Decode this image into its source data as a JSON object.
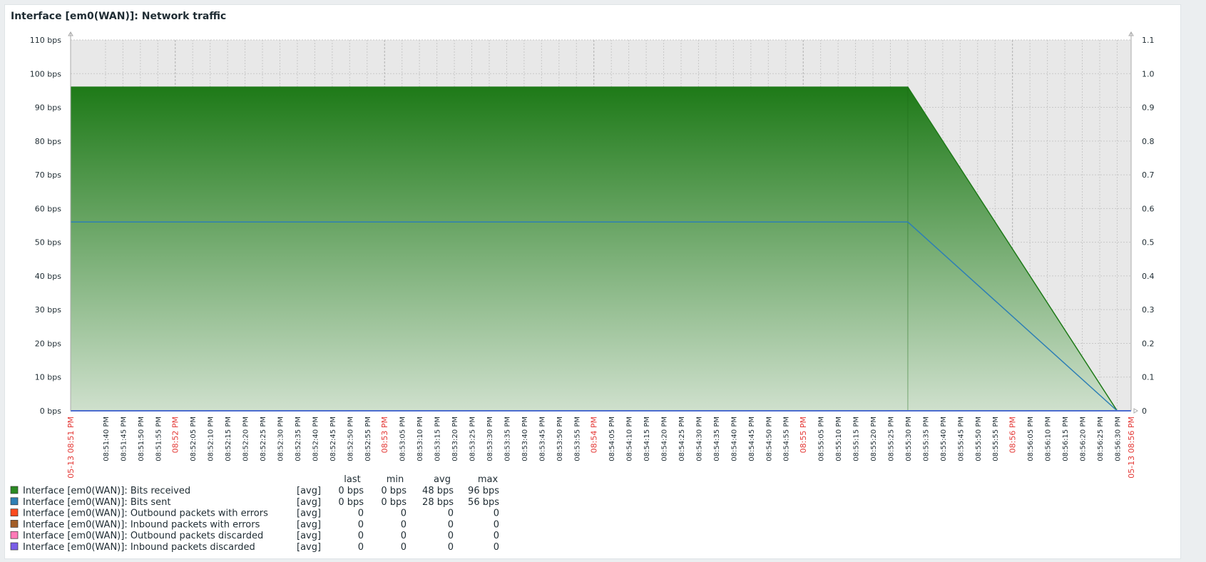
{
  "title": "Interface [em0(WAN)]: Network traffic",
  "colors": {
    "plot_bg": "#e8e8e8",
    "grid": "#c8c8c8",
    "axis": "#aaaaaa",
    "tick_text": "#1f2c33",
    "time_major": "#e33734",
    "received_top": "#1e7a18",
    "received_bottom": "#cfe0cd",
    "sent_line": "#2e7fb5",
    "zero_line": "#4b6cd0"
  },
  "chart_data": {
    "type": "area",
    "title": "Interface [em0(WAN)]: Network traffic",
    "y_left": {
      "min": 0,
      "max": 110,
      "unit": "bps",
      "ticks": [
        "0 bps",
        "10 bps",
        "20 bps",
        "30 bps",
        "40 bps",
        "50 bps",
        "60 bps",
        "70 bps",
        "80 bps",
        "90 bps",
        "100 bps",
        "110 bps"
      ]
    },
    "y_right": {
      "min": 0,
      "max": 1.1,
      "ticks": [
        "0",
        "0.1",
        "0.2",
        "0.3",
        "0.4",
        "0.5",
        "0.6",
        "0.7",
        "0.8",
        "0.9",
        "1.0",
        "1.1"
      ]
    },
    "x_start_label": "05-13 08:51 PM",
    "x_end_label": "05-13 08:56 PM",
    "x_labels": [
      {
        "t": 0,
        "label": "05-13 08:51 PM",
        "major": true
      },
      {
        "t": 10,
        "label": "08:51:40 PM",
        "major": false
      },
      {
        "t": 15,
        "label": "08:51:45 PM",
        "major": false
      },
      {
        "t": 20,
        "label": "08:51:50 PM",
        "major": false
      },
      {
        "t": 25,
        "label": "08:51:55 PM",
        "major": false
      },
      {
        "t": 30,
        "label": "08:52 PM",
        "major": true
      },
      {
        "t": 35,
        "label": "08:52:05 PM",
        "major": false
      },
      {
        "t": 40,
        "label": "08:52:10 PM",
        "major": false
      },
      {
        "t": 45,
        "label": "08:52:15 PM",
        "major": false
      },
      {
        "t": 50,
        "label": "08:52:20 PM",
        "major": false
      },
      {
        "t": 55,
        "label": "08:52:25 PM",
        "major": false
      },
      {
        "t": 60,
        "label": "08:52:30 PM",
        "major": false
      },
      {
        "t": 65,
        "label": "08:52:35 PM",
        "major": false
      },
      {
        "t": 70,
        "label": "08:52:40 PM",
        "major": false
      },
      {
        "t": 75,
        "label": "08:52:45 PM",
        "major": false
      },
      {
        "t": 80,
        "label": "08:52:50 PM",
        "major": false
      },
      {
        "t": 85,
        "label": "08:52:55 PM",
        "major": false
      },
      {
        "t": 90,
        "label": "08:53 PM",
        "major": true
      },
      {
        "t": 95,
        "label": "08:53:05 PM",
        "major": false
      },
      {
        "t": 100,
        "label": "08:53:10 PM",
        "major": false
      },
      {
        "t": 105,
        "label": "08:53:15 PM",
        "major": false
      },
      {
        "t": 110,
        "label": "08:53:20 PM",
        "major": false
      },
      {
        "t": 115,
        "label": "08:53:25 PM",
        "major": false
      },
      {
        "t": 120,
        "label": "08:53:30 PM",
        "major": false
      },
      {
        "t": 125,
        "label": "08:53:35 PM",
        "major": false
      },
      {
        "t": 130,
        "label": "08:53:40 PM",
        "major": false
      },
      {
        "t": 135,
        "label": "08:53:45 PM",
        "major": false
      },
      {
        "t": 140,
        "label": "08:53:50 PM",
        "major": false
      },
      {
        "t": 145,
        "label": "08:53:55 PM",
        "major": false
      },
      {
        "t": 150,
        "label": "08:54 PM",
        "major": true
      },
      {
        "t": 155,
        "label": "08:54:05 PM",
        "major": false
      },
      {
        "t": 160,
        "label": "08:54:10 PM",
        "major": false
      },
      {
        "t": 165,
        "label": "08:54:15 PM",
        "major": false
      },
      {
        "t": 170,
        "label": "08:54:20 PM",
        "major": false
      },
      {
        "t": 175,
        "label": "08:54:25 PM",
        "major": false
      },
      {
        "t": 180,
        "label": "08:54:30 PM",
        "major": false
      },
      {
        "t": 185,
        "label": "08:54:35 PM",
        "major": false
      },
      {
        "t": 190,
        "label": "08:54:40 PM",
        "major": false
      },
      {
        "t": 195,
        "label": "08:54:45 PM",
        "major": false
      },
      {
        "t": 200,
        "label": "08:54:50 PM",
        "major": false
      },
      {
        "t": 205,
        "label": "08:54:55 PM",
        "major": false
      },
      {
        "t": 210,
        "label": "08:55 PM",
        "major": true
      },
      {
        "t": 215,
        "label": "08:55:05 PM",
        "major": false
      },
      {
        "t": 220,
        "label": "08:55:10 PM",
        "major": false
      },
      {
        "t": 225,
        "label": "08:55:15 PM",
        "major": false
      },
      {
        "t": 230,
        "label": "08:55:20 PM",
        "major": false
      },
      {
        "t": 235,
        "label": "08:55:25 PM",
        "major": false
      },
      {
        "t": 240,
        "label": "08:55:30 PM",
        "major": false
      },
      {
        "t": 245,
        "label": "08:55:35 PM",
        "major": false
      },
      {
        "t": 250,
        "label": "08:55:40 PM",
        "major": false
      },
      {
        "t": 255,
        "label": "08:55:45 PM",
        "major": false
      },
      {
        "t": 260,
        "label": "08:55:50 PM",
        "major": false
      },
      {
        "t": 265,
        "label": "08:55:55 PM",
        "major": false
      },
      {
        "t": 270,
        "label": "08:56 PM",
        "major": true
      },
      {
        "t": 275,
        "label": "08:56:05 PM",
        "major": false
      },
      {
        "t": 280,
        "label": "08:56:10 PM",
        "major": false
      },
      {
        "t": 285,
        "label": "08:56:15 PM",
        "major": false
      },
      {
        "t": 290,
        "label": "08:56:20 PM",
        "major": false
      },
      {
        "t": 295,
        "label": "08:56:25 PM",
        "major": false
      },
      {
        "t": 300,
        "label": "08:56:30 PM",
        "major": false
      },
      {
        "t": 304,
        "label": "05-13 08:56 PM",
        "major": true
      }
    ],
    "series": [
      {
        "name": "Interface [em0(WAN)]: Bits received",
        "color": "#2b8a23",
        "style": "area",
        "points": [
          [
            0,
            96
          ],
          [
            240,
            96
          ],
          [
            300,
            0
          ],
          [
            304,
            0
          ]
        ]
      },
      {
        "name": "Interface [em0(WAN)]: Bits sent",
        "color": "#2e7fb5",
        "style": "line",
        "points": [
          [
            0,
            56
          ],
          [
            240,
            56
          ],
          [
            300,
            0
          ],
          [
            304,
            0
          ]
        ]
      },
      {
        "name": "Interface [em0(WAN)]: Outbound packets with errors",
        "color": "#ff4a1e",
        "style": "line",
        "points": [
          [
            0,
            0
          ],
          [
            304,
            0
          ]
        ]
      },
      {
        "name": "Interface [em0(WAN)]: Inbound packets with errors",
        "color": "#a35d28",
        "style": "line",
        "points": [
          [
            0,
            0
          ],
          [
            304,
            0
          ]
        ]
      },
      {
        "name": "Interface [em0(WAN)]: Outbound packets discarded",
        "color": "#ff7ab8",
        "style": "line",
        "points": [
          [
            0,
            0
          ],
          [
            304,
            0
          ]
        ]
      },
      {
        "name": "Interface [em0(WAN)]: Inbound packets discarded",
        "color": "#7a5de8",
        "style": "line",
        "points": [
          [
            0,
            0
          ],
          [
            304,
            0
          ]
        ]
      }
    ]
  },
  "legend": {
    "headers": [
      "last",
      "min",
      "avg",
      "max"
    ],
    "rows": [
      {
        "name": "Interface [em0(WAN)]: Bits received",
        "color": "#2b8a23",
        "func": "[avg]",
        "last": "0 bps",
        "min": "0 bps",
        "avg": "48 bps",
        "max": "96 bps"
      },
      {
        "name": "Interface [em0(WAN)]: Bits sent",
        "color": "#2e7fb5",
        "func": "[avg]",
        "last": "0 bps",
        "min": "0 bps",
        "avg": "28 bps",
        "max": "56 bps"
      },
      {
        "name": "Interface [em0(WAN)]: Outbound packets with errors",
        "color": "#ff4a1e",
        "func": "[avg]",
        "last": "0",
        "min": "0",
        "avg": "0",
        "max": "0"
      },
      {
        "name": "Interface [em0(WAN)]: Inbound packets with errors",
        "color": "#a35d28",
        "func": "[avg]",
        "last": "0",
        "min": "0",
        "avg": "0",
        "max": "0"
      },
      {
        "name": "Interface [em0(WAN)]: Outbound packets discarded",
        "color": "#ff7ab8",
        "func": "[avg]",
        "last": "0",
        "min": "0",
        "avg": "0",
        "max": "0"
      },
      {
        "name": "Interface [em0(WAN)]: Inbound packets discarded",
        "color": "#7a5de8",
        "func": "[avg]",
        "last": "0",
        "min": "0",
        "avg": "0",
        "max": "0"
      }
    ]
  }
}
